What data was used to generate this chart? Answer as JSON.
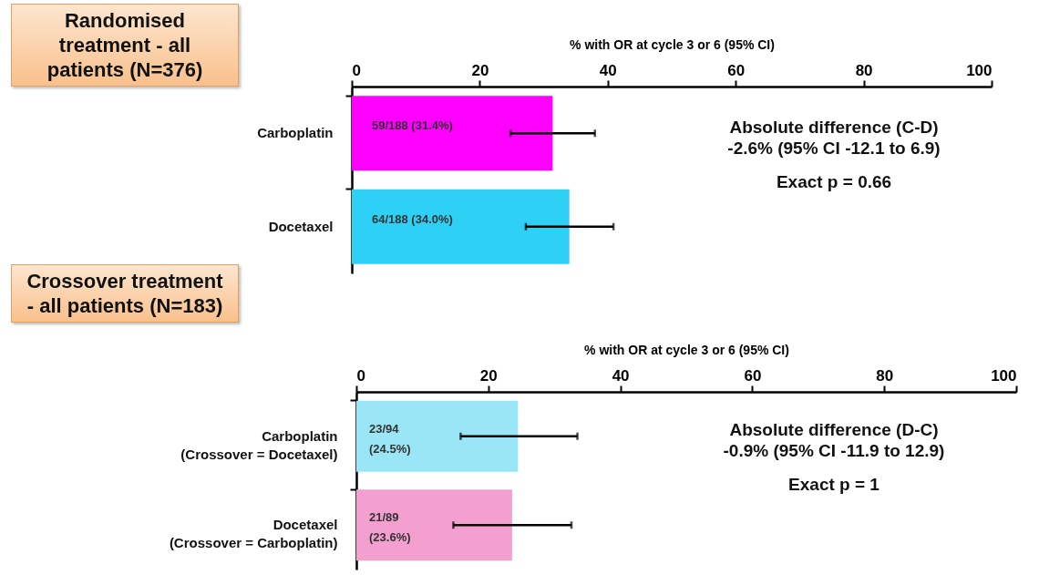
{
  "chart_data": [
    {
      "type": "bar",
      "orientation": "horizontal",
      "title": "Randomised treatment - all patients (N=376)",
      "xlabel": "% with OR at cycle 3 or 6 (95% CI)",
      "categories": [
        "Carboplatin",
        "Docetaxel"
      ],
      "values": [
        31.4,
        34.0
      ],
      "colors": [
        "#ff00ff",
        "#2fd0f5"
      ],
      "errors": [
        [
          24.8,
          38.0
        ],
        [
          27.2,
          40.9
        ]
      ],
      "value_labels": [
        "59/188 (31.4%)",
        "64/188 (34.0%)"
      ],
      "xlim": [
        0,
        100
      ],
      "xticks": [
        0,
        20,
        40,
        60,
        80,
        100
      ],
      "grid": false,
      "legend": false,
      "annotations": [
        "Absolute difference (C-D)",
        "-2.6% (95% CI -12.1 to 6.9)",
        "Exact p = 0.66"
      ]
    },
    {
      "type": "bar",
      "orientation": "horizontal",
      "title": "Crossover treatment - all patients (N=183)",
      "xlabel": "% with OR at cycle 3 or 6 (95% CI)",
      "categories": [
        "Carboplatin\n(Crossover = Docetaxel)",
        "Docetaxel\n(Crossover = Carboplatin)"
      ],
      "values": [
        24.5,
        23.6
      ],
      "colors": [
        "#9be6f6",
        "#f3a0d0"
      ],
      "errors": [
        [
          15.8,
          33.5
        ],
        [
          14.7,
          32.6
        ]
      ],
      "value_labels": [
        "23/94\n(24.5%)",
        "21/89\n(23.6%)"
      ],
      "xlim": [
        0,
        100
      ],
      "xticks": [
        0,
        20,
        40,
        60,
        80,
        100
      ],
      "grid": false,
      "legend": false,
      "annotations": [
        "Absolute difference (D-C)",
        "-0.9% (95% CI -11.9 to 12.9)",
        "Exact p = 1"
      ]
    }
  ]
}
